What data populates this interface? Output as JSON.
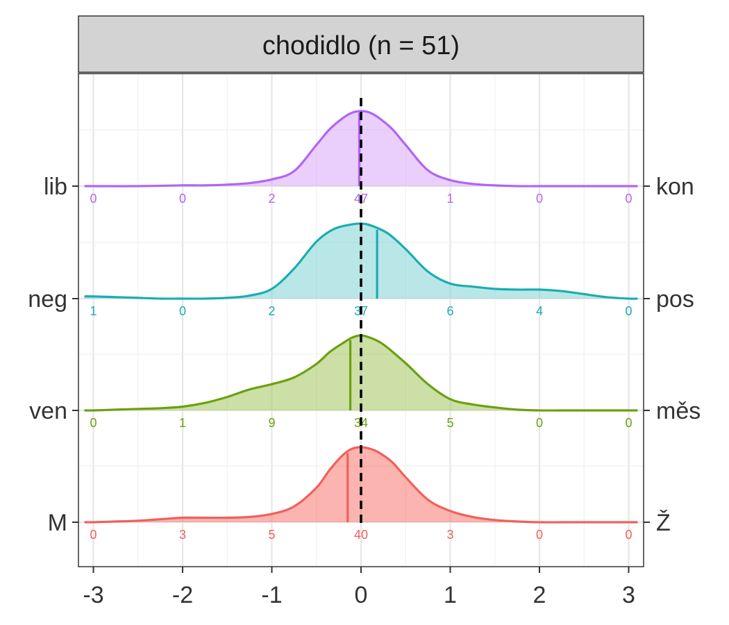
{
  "chart_data": {
    "type": "ridgeline-density",
    "facet_title": "chodidlo (n = 51)",
    "xlim": [
      -3,
      3
    ],
    "x_ticks": [
      -3,
      -2,
      -1,
      0,
      1,
      2,
      3
    ],
    "x_tick_labels": [
      "-3",
      "-2",
      "-1",
      "0",
      "1",
      "2",
      "3"
    ],
    "reference_line_x": 0,
    "grid": true,
    "count_positions": [
      -3,
      -2,
      -1,
      0,
      1,
      2,
      3
    ],
    "series": [
      {
        "left_label": "M",
        "right_label": "Ž",
        "color": "#F15F5C",
        "fill": "#F8766D",
        "mean": -0.15,
        "counts": [
          "0",
          "3",
          "5",
          "40",
          "3",
          "0",
          "0"
        ],
        "density": {
          "x": [
            -3.1,
            -3.0,
            -2.75,
            -2.5,
            -2.25,
            -2.0,
            -1.75,
            -1.5,
            -1.25,
            -1.0,
            -0.75,
            -0.5,
            -0.35,
            -0.2,
            -0.1,
            0.0,
            0.1,
            0.2,
            0.35,
            0.5,
            0.75,
            1.0,
            1.25,
            1.5,
            1.75,
            2.0,
            2.25,
            2.5,
            2.75,
            3.0,
            3.1
          ],
          "y": [
            0.0,
            0.0,
            0.01,
            0.02,
            0.04,
            0.06,
            0.06,
            0.06,
            0.07,
            0.11,
            0.21,
            0.46,
            0.7,
            0.9,
            0.98,
            1.0,
            0.98,
            0.93,
            0.8,
            0.6,
            0.3,
            0.15,
            0.07,
            0.03,
            0.01,
            0.0,
            0.0,
            0.0,
            0.0,
            0.0,
            0.0
          ]
        }
      },
      {
        "left_label": "ven",
        "right_label": "měs",
        "color": "#6BA00E",
        "fill": "#A3C45E",
        "mean": -0.12,
        "counts": [
          "0",
          "1",
          "9",
          "34",
          "5",
          "0",
          "0"
        ],
        "density": {
          "x": [
            -3.1,
            -3.0,
            -2.75,
            -2.5,
            -2.25,
            -2.0,
            -1.75,
            -1.5,
            -1.25,
            -1.0,
            -0.75,
            -0.5,
            -0.35,
            -0.2,
            -0.1,
            0.0,
            0.1,
            0.25,
            0.5,
            0.75,
            1.0,
            1.25,
            1.5,
            1.75,
            2.0,
            2.25,
            2.5,
            2.75,
            3.0,
            3.1
          ],
          "y": [
            0.0,
            0.0,
            0.01,
            0.02,
            0.03,
            0.05,
            0.1,
            0.18,
            0.28,
            0.35,
            0.44,
            0.62,
            0.78,
            0.9,
            0.97,
            1.0,
            0.97,
            0.88,
            0.63,
            0.35,
            0.15,
            0.08,
            0.04,
            0.01,
            0.0,
            0.0,
            0.0,
            0.0,
            0.0,
            0.0
          ]
        }
      },
      {
        "left_label": "neg",
        "right_label": "pos",
        "color": "#1AADB0",
        "fill": "#7FD3D5",
        "mean": 0.18,
        "counts": [
          "1",
          "0",
          "2",
          "37",
          "6",
          "4",
          "0"
        ],
        "density": {
          "x": [
            -3.1,
            -3.0,
            -2.75,
            -2.5,
            -2.25,
            -2.0,
            -1.75,
            -1.5,
            -1.25,
            -1.0,
            -0.75,
            -0.5,
            -0.3,
            -0.1,
            0.0,
            0.1,
            0.3,
            0.5,
            0.75,
            1.0,
            1.25,
            1.5,
            1.75,
            2.0,
            2.25,
            2.5,
            2.75,
            3.0,
            3.1
          ],
          "y": [
            0.03,
            0.03,
            0.02,
            0.01,
            0.0,
            0.0,
            0.0,
            0.01,
            0.04,
            0.13,
            0.4,
            0.76,
            0.93,
            0.99,
            1.0,
            0.98,
            0.87,
            0.66,
            0.36,
            0.2,
            0.16,
            0.13,
            0.12,
            0.12,
            0.1,
            0.06,
            0.02,
            0.0,
            0.0
          ]
        }
      },
      {
        "left_label": "lib",
        "right_label": "kon",
        "color": "#B065F5",
        "fill": "#D9A6FA",
        "mean": -0.02,
        "counts": [
          "0",
          "0",
          "2",
          "47",
          "1",
          "0",
          "0"
        ],
        "density": {
          "x": [
            -3.1,
            -3.0,
            -2.5,
            -2.0,
            -1.75,
            -1.5,
            -1.25,
            -1.0,
            -0.75,
            -0.5,
            -0.35,
            -0.2,
            -0.1,
            0.0,
            0.1,
            0.2,
            0.35,
            0.5,
            0.75,
            1.0,
            1.25,
            1.5,
            1.75,
            2.0,
            2.5,
            3.0,
            3.1
          ],
          "y": [
            0.0,
            0.0,
            0.0,
            0.01,
            0.01,
            0.02,
            0.04,
            0.09,
            0.2,
            0.55,
            0.76,
            0.91,
            0.98,
            1.0,
            0.98,
            0.91,
            0.76,
            0.55,
            0.21,
            0.08,
            0.03,
            0.01,
            0.0,
            0.0,
            0.0,
            0.0,
            0.0
          ]
        }
      }
    ]
  }
}
